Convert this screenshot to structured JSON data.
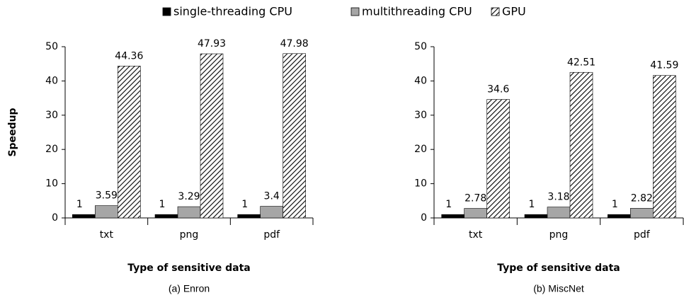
{
  "chart_data": [
    {
      "type": "bar",
      "ylabel": "Speedup",
      "xlabel": "Type of sensitive data",
      "caption": "(a) Enron",
      "categories": [
        "txt",
        "png",
        "pdf"
      ],
      "series": [
        {
          "name": "single-threading CPU",
          "color": "#000000",
          "values": [
            1,
            1,
            1
          ]
        },
        {
          "name": "multithreading CPU",
          "color": "#a6a6a6",
          "values": [
            3.59,
            3.29,
            3.4
          ]
        },
        {
          "name": "GPU",
          "color": "#000000",
          "pattern": "hatch",
          "values": [
            44.36,
            47.93,
            47.98
          ]
        }
      ],
      "ylim": [
        0,
        50
      ],
      "yticks": [
        0,
        10,
        20,
        30,
        40,
        50
      ]
    },
    {
      "type": "bar",
      "xlabel": "Type of sensitive data",
      "caption": "(b) MiscNet",
      "categories": [
        "txt",
        "png",
        "pdf"
      ],
      "series": [
        {
          "color": "#000000",
          "values": [
            1,
            1,
            1
          ]
        },
        {
          "color": "#a6a6a6",
          "values": [
            2.78,
            3.18,
            2.82
          ]
        },
        {
          "color": "#000000",
          "pattern": "hatch",
          "values": [
            34.6,
            42.51,
            41.59
          ]
        }
      ],
      "ylim": [
        0,
        50
      ],
      "yticks": [
        0,
        10,
        20,
        30,
        40,
        50
      ]
    }
  ]
}
